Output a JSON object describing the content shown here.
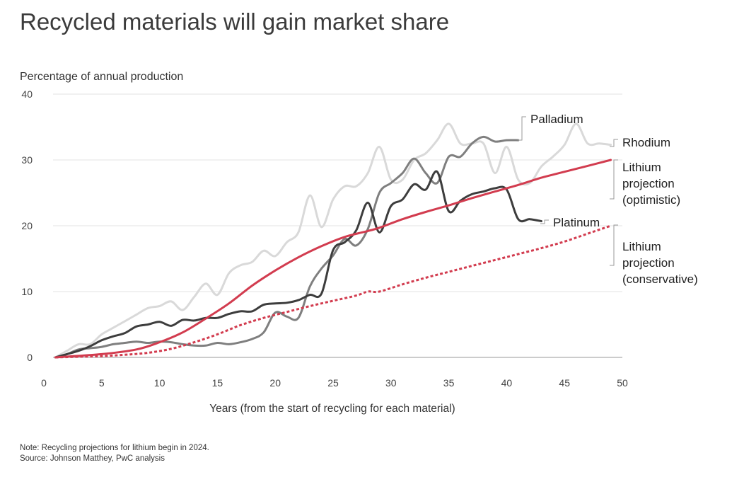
{
  "title": "Recycled materials will gain market share",
  "note": "Note: Recycling projections for lithium begin in 2024.",
  "source": "Source: Johnson Matthey, PwC analysis",
  "chart_data": {
    "type": "line",
    "title": "Recycled materials will gain market share",
    "ylabel": "Percentage of annual production",
    "xlabel": "Years (from the start of recycling for each material)",
    "xlim": [
      0,
      50
    ],
    "ylim": [
      0,
      40
    ],
    "xticks": [
      "0",
      "5",
      "10",
      "15",
      "20",
      "25",
      "30",
      "35",
      "40",
      "45",
      "50"
    ],
    "yticks": [
      "0",
      "10",
      "20",
      "30",
      "40"
    ],
    "grid": "horizontal",
    "series": [
      {
        "name": "Rhodium",
        "label_lines": [
          "Rhodium"
        ],
        "color": "#d9d9d9",
        "style": "solid",
        "x": [
          1,
          2,
          3,
          4,
          5,
          6,
          7,
          8,
          9,
          10,
          11,
          12,
          13,
          14,
          15,
          16,
          17,
          18,
          19,
          20,
          21,
          22,
          23,
          24,
          25,
          26,
          27,
          28,
          29,
          30,
          31,
          32,
          33,
          34,
          35,
          36,
          37,
          38,
          39,
          40,
          41,
          42,
          43,
          44,
          45,
          46,
          47,
          48,
          49
        ],
        "values": [
          0,
          1,
          2,
          2,
          3.5,
          4.5,
          5.5,
          6.5,
          7.5,
          7.8,
          8.5,
          7.2,
          9.2,
          11.2,
          9.5,
          12.8,
          14,
          14.5,
          16.2,
          15.4,
          17.5,
          19,
          24.6,
          19.8,
          24,
          26,
          26,
          28,
          32,
          27,
          27,
          30,
          31,
          33,
          35.5,
          32.5,
          32.5,
          32.5,
          28,
          32,
          27,
          26.5,
          29,
          30.5,
          32.3,
          35.5,
          32.5,
          32.5,
          32.3
        ]
      },
      {
        "name": "Palladium",
        "label_lines": [
          "Palladium"
        ],
        "color": "#7f7f7f",
        "style": "solid",
        "x": [
          1,
          2,
          3,
          4,
          5,
          6,
          7,
          8,
          9,
          10,
          11,
          12,
          13,
          14,
          15,
          16,
          17,
          18,
          19,
          20,
          21,
          22,
          23,
          24,
          25,
          26,
          27,
          28,
          29,
          30,
          31,
          32,
          33,
          34,
          35,
          36,
          37,
          38,
          39,
          40,
          41
        ],
        "values": [
          0,
          0.5,
          1.2,
          1.4,
          1.6,
          2,
          2.2,
          2.4,
          2.2,
          2.4,
          2.3,
          2,
          1.8,
          1.8,
          2.2,
          2,
          2.3,
          2.8,
          3.8,
          6.8,
          6.2,
          6,
          10.8,
          13.5,
          15.5,
          18,
          17,
          19.5,
          25,
          26.5,
          28,
          30.2,
          28,
          26.5,
          30.5,
          30.5,
          32.5,
          33.5,
          32.8,
          33,
          33
        ]
      },
      {
        "name": "Platinum",
        "label_lines": [
          "Platinum"
        ],
        "color": "#3d3d3d",
        "style": "solid",
        "x": [
          1,
          2,
          3,
          4,
          5,
          6,
          7,
          8,
          9,
          10,
          11,
          12,
          13,
          14,
          15,
          16,
          17,
          18,
          19,
          20,
          21,
          22,
          23,
          24,
          25,
          26,
          27,
          28,
          29,
          30,
          31,
          32,
          33,
          34,
          35,
          36,
          37,
          38,
          39,
          40,
          41,
          42,
          43
        ],
        "values": [
          0,
          0.5,
          1,
          1.7,
          2.6,
          3.2,
          3.7,
          4.7,
          5,
          5.4,
          4.8,
          5.7,
          5.6,
          6,
          6,
          6.6,
          7,
          7,
          8,
          8.2,
          8.3,
          8.7,
          9.5,
          9.7,
          16.3,
          17.5,
          19.3,
          23.5,
          19,
          23,
          24,
          26.3,
          25.5,
          28.2,
          22.2,
          23.8,
          24.8,
          25.2,
          25.7,
          25.5,
          21,
          21,
          20.7
        ]
      },
      {
        "name": "Lithium projection (optimistic)",
        "label_lines": [
          "Lithium",
          "projection",
          "(optimistic)"
        ],
        "color": "#d23c4f",
        "style": "solid",
        "x": [
          1,
          5,
          8,
          10,
          12,
          14,
          16,
          18,
          20,
          22,
          24,
          26,
          28,
          29,
          31,
          33,
          35,
          37,
          39,
          41,
          43,
          45,
          47,
          49
        ],
        "values": [
          0,
          0.5,
          1.2,
          2.3,
          3.8,
          5.9,
          8.2,
          10.9,
          13.2,
          15.2,
          16.9,
          18.3,
          19.2,
          19.7,
          21,
          22.1,
          23.1,
          24.2,
          25.2,
          26.2,
          27.3,
          28.2,
          29.1,
          30
        ]
      },
      {
        "name": "Lithium projection (conservative)",
        "label_lines": [
          "Lithium",
          "projection",
          "(conservative)"
        ],
        "color": "#d23c4f",
        "style": "dashed",
        "x": [
          1,
          3,
          5,
          7,
          9,
          11,
          13,
          15,
          17,
          19,
          21,
          23,
          25,
          27,
          28,
          29,
          31,
          33,
          35,
          37,
          39,
          41,
          43,
          45,
          47,
          49
        ],
        "values": [
          0,
          0.1,
          0.2,
          0.4,
          0.7,
          1.3,
          2.3,
          3.5,
          4.9,
          6,
          6.9,
          7.8,
          8.6,
          9.4,
          10,
          10,
          11.1,
          12.1,
          13,
          13.9,
          14.8,
          15.7,
          16.6,
          17.6,
          18.8,
          20
        ]
      }
    ]
  }
}
